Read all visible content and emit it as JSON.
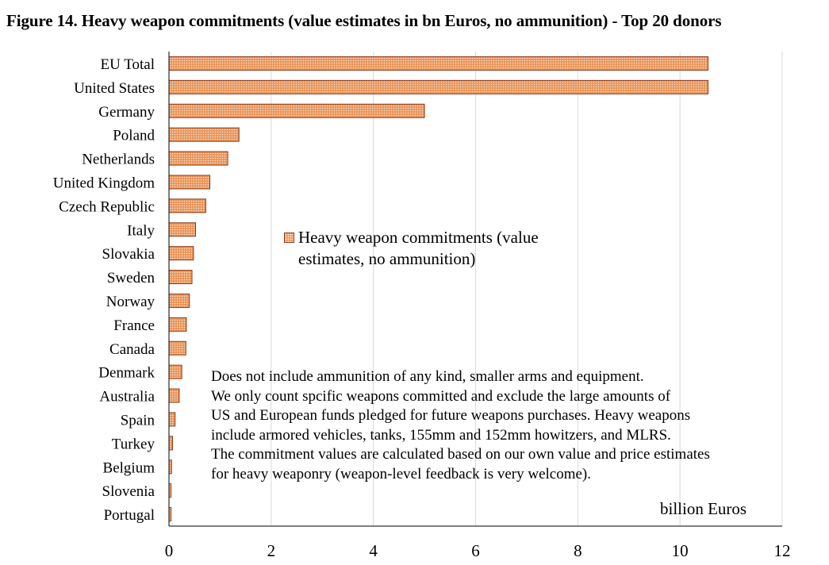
{
  "chart_data": {
    "type": "bar",
    "orientation": "horizontal",
    "title": "Figure 14. Heavy weapon commitments (value estimates in bn Euros, no ammunition) -  Top 20 donors",
    "categories": [
      "EU Total",
      "United States",
      "Germany",
      "Poland",
      "Netherlands",
      "United Kingdom",
      "Czech Republic",
      "Italy",
      "Slovakia",
      "Sweden",
      "Norway",
      "France",
      "Canada",
      "Denmark",
      "Australia",
      "Spain",
      "Turkey",
      "Belgium",
      "Slovenia",
      "Portugal"
    ],
    "series": [
      {
        "name": "Heavy weapon commitments (value estimates, no ammunition)",
        "values": [
          10.55,
          10.55,
          5.0,
          1.37,
          1.15,
          0.8,
          0.72,
          0.52,
          0.48,
          0.45,
          0.4,
          0.34,
          0.33,
          0.25,
          0.2,
          0.12,
          0.07,
          0.05,
          0.04,
          0.04
        ]
      }
    ],
    "xlim": [
      0,
      12
    ],
    "xticks": [
      "0",
      "2",
      "4",
      "6",
      "8",
      "10",
      "12"
    ],
    "xlabel": "billion Euros",
    "grid": true,
    "legend": {
      "position": "middle",
      "lines": [
        "Heavy weapon commitments (value",
        "estimates, no ammunition)"
      ]
    },
    "colors": {
      "bar_fill": "#e8955a",
      "bar_dots": "#fbe0c8",
      "bar_edge": "#8b3a1a",
      "gridline": "#d9d9d9"
    }
  },
  "note_lines": [
    "Does not include ammunition of any kind, smaller arms and equipment.",
    "We only count spcific weapons committed and exclude the large amounts of",
    "US and European funds pledged for future weapons purchases. Heavy weapons",
    "include armored vehicles, tanks, 155mm and 152mm howitzers, and MLRS.",
    "The commitment values are calculated based on our own value and price estimates",
    "for heavy weaponry (weapon-level feedback is very welcome)."
  ]
}
